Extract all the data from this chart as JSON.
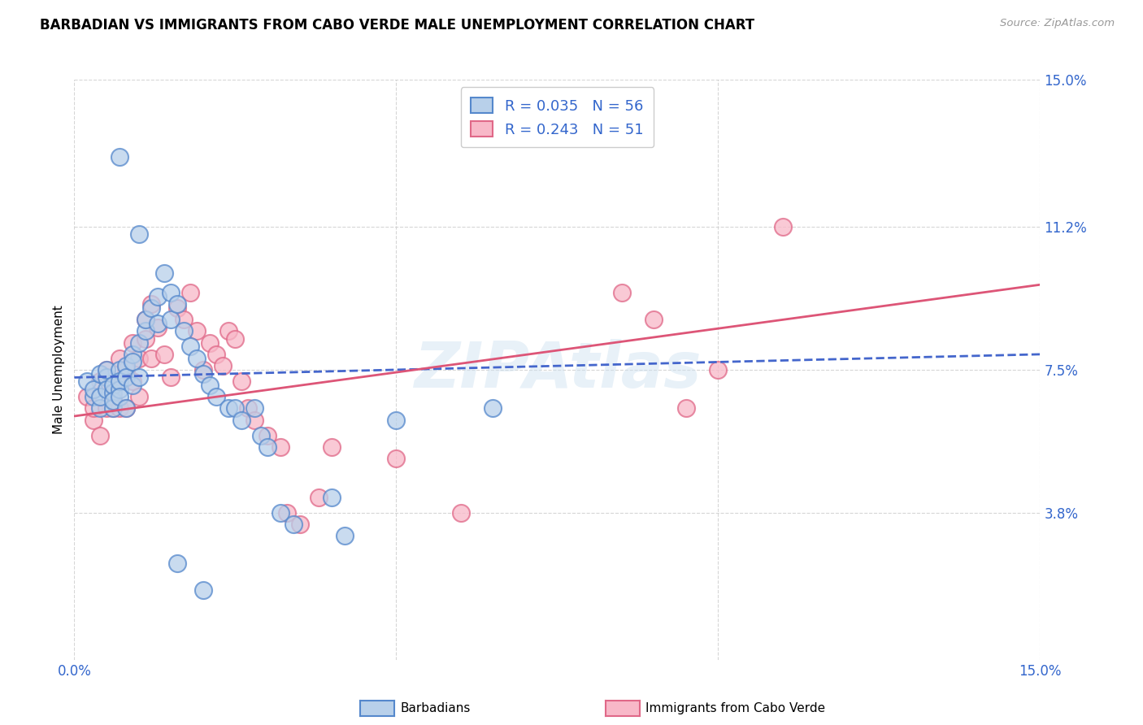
{
  "title": "BARBADIAN VS IMMIGRANTS FROM CABO VERDE MALE UNEMPLOYMENT CORRELATION CHART",
  "source": "Source: ZipAtlas.com",
  "ylabel": "Male Unemployment",
  "xlim": [
    0.0,
    0.15
  ],
  "ylim": [
    0.0,
    0.15
  ],
  "xtick_vals": [
    0.0,
    0.05,
    0.1,
    0.15
  ],
  "xtick_labels": [
    "0.0%",
    "",
    "",
    "15.0%"
  ],
  "ytick_right_values": [
    0.038,
    0.075,
    0.112,
    0.15
  ],
  "ytick_right_labels": [
    "3.8%",
    "7.5%",
    "11.2%",
    "15.0%"
  ],
  "barbadian_face": "#b8d0ea",
  "barbadian_edge": "#5588cc",
  "cabo_verde_face": "#f8b8c8",
  "cabo_verde_edge": "#e06888",
  "line_blue": "#4466cc",
  "line_pink": "#dd5577",
  "r_barbadian": 0.035,
  "n_barbadian": 56,
  "r_cabo_verde": 0.243,
  "n_cabo_verde": 51,
  "background_color": "#ffffff",
  "grid_color": "#cccccc",
  "text_blue": "#3366cc",
  "watermark": "ZIPAtlas",
  "scatter_barbadian_x": [
    0.002,
    0.003,
    0.003,
    0.004,
    0.004,
    0.004,
    0.005,
    0.005,
    0.005,
    0.006,
    0.006,
    0.006,
    0.006,
    0.007,
    0.007,
    0.007,
    0.007,
    0.008,
    0.008,
    0.008,
    0.009,
    0.009,
    0.009,
    0.01,
    0.01,
    0.011,
    0.011,
    0.012,
    0.013,
    0.013,
    0.014,
    0.015,
    0.015,
    0.016,
    0.017,
    0.018,
    0.019,
    0.02,
    0.021,
    0.022,
    0.024,
    0.025,
    0.026,
    0.028,
    0.029,
    0.03,
    0.032,
    0.034,
    0.04,
    0.042,
    0.05,
    0.065,
    0.007,
    0.01,
    0.016,
    0.02
  ],
  "scatter_barbadian_y": [
    0.072,
    0.068,
    0.07,
    0.074,
    0.065,
    0.068,
    0.073,
    0.075,
    0.07,
    0.069,
    0.071,
    0.065,
    0.067,
    0.075,
    0.07,
    0.072,
    0.068,
    0.076,
    0.073,
    0.065,
    0.079,
    0.077,
    0.071,
    0.082,
    0.073,
    0.085,
    0.088,
    0.091,
    0.094,
    0.087,
    0.1,
    0.095,
    0.088,
    0.092,
    0.085,
    0.081,
    0.078,
    0.074,
    0.071,
    0.068,
    0.065,
    0.065,
    0.062,
    0.065,
    0.058,
    0.055,
    0.038,
    0.035,
    0.042,
    0.032,
    0.062,
    0.065,
    0.13,
    0.11,
    0.025,
    0.018
  ],
  "scatter_cabo_verde_x": [
    0.002,
    0.003,
    0.003,
    0.004,
    0.004,
    0.005,
    0.005,
    0.006,
    0.006,
    0.006,
    0.007,
    0.007,
    0.008,
    0.008,
    0.009,
    0.009,
    0.01,
    0.01,
    0.011,
    0.011,
    0.012,
    0.012,
    0.013,
    0.014,
    0.015,
    0.016,
    0.017,
    0.018,
    0.019,
    0.02,
    0.021,
    0.022,
    0.023,
    0.024,
    0.025,
    0.026,
    0.027,
    0.028,
    0.03,
    0.032,
    0.033,
    0.035,
    0.038,
    0.04,
    0.05,
    0.06,
    0.085,
    0.09,
    0.095,
    0.1,
    0.11
  ],
  "scatter_cabo_verde_y": [
    0.068,
    0.062,
    0.065,
    0.072,
    0.058,
    0.075,
    0.065,
    0.071,
    0.065,
    0.068,
    0.078,
    0.065,
    0.075,
    0.065,
    0.082,
    0.072,
    0.068,
    0.078,
    0.088,
    0.083,
    0.092,
    0.078,
    0.086,
    0.079,
    0.073,
    0.091,
    0.088,
    0.095,
    0.085,
    0.075,
    0.082,
    0.079,
    0.076,
    0.085,
    0.083,
    0.072,
    0.065,
    0.062,
    0.058,
    0.055,
    0.038,
    0.035,
    0.042,
    0.055,
    0.052,
    0.038,
    0.095,
    0.088,
    0.065,
    0.075,
    0.112
  ],
  "trend_barbadian_x0": 0.0,
  "trend_barbadian_y0": 0.073,
  "trend_barbadian_x1": 0.15,
  "trend_barbadian_y1": 0.079,
  "trend_cabo_verde_x0": 0.0,
  "trend_cabo_verde_y0": 0.063,
  "trend_cabo_verde_x1": 0.15,
  "trend_cabo_verde_y1": 0.097
}
